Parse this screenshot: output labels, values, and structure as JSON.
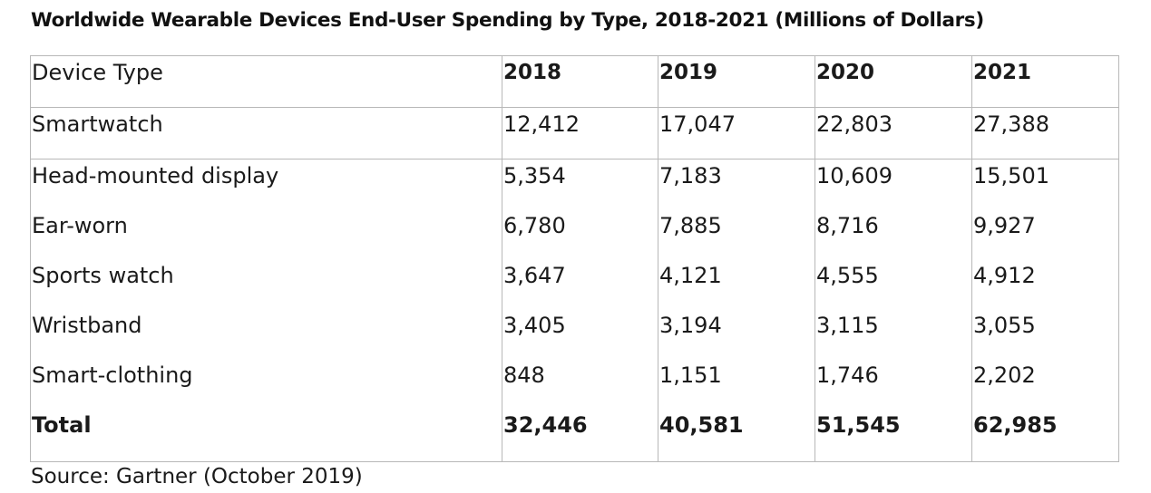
{
  "title": "Worldwide Wearable Devices End-User Spending by Type, 2018-2021 (Millions of Dollars)",
  "table": {
    "header": {
      "label": "Device Type",
      "years": [
        "2018",
        "2019",
        "2020",
        "2021"
      ]
    },
    "rows": [
      {
        "type": "Smartwatch",
        "values": [
          "12,412",
          "17,047",
          "22,803",
          "27,388"
        ]
      },
      {
        "type": "Head-mounted display",
        "values": [
          "5,354",
          "7,183",
          "10,609",
          "15,501"
        ]
      },
      {
        "type": "Ear-worn",
        "values": [
          "6,780",
          "7,885",
          "8,716",
          "9,927"
        ]
      },
      {
        "type": "Sports watch",
        "values": [
          "3,647",
          "4,121",
          "4,555",
          "4,912"
        ]
      },
      {
        "type": "Wristband",
        "values": [
          "3,405",
          "3,194",
          "3,115",
          "3,055"
        ]
      },
      {
        "type": "Smart-clothing",
        "values": [
          "848",
          "1,151",
          "1,746",
          "2,202"
        ]
      }
    ],
    "total": {
      "label": "Total",
      "values": [
        "32,446",
        "40,581",
        "51,545",
        "62,985"
      ]
    }
  },
  "source": "Source: Gartner (October 2019)"
}
